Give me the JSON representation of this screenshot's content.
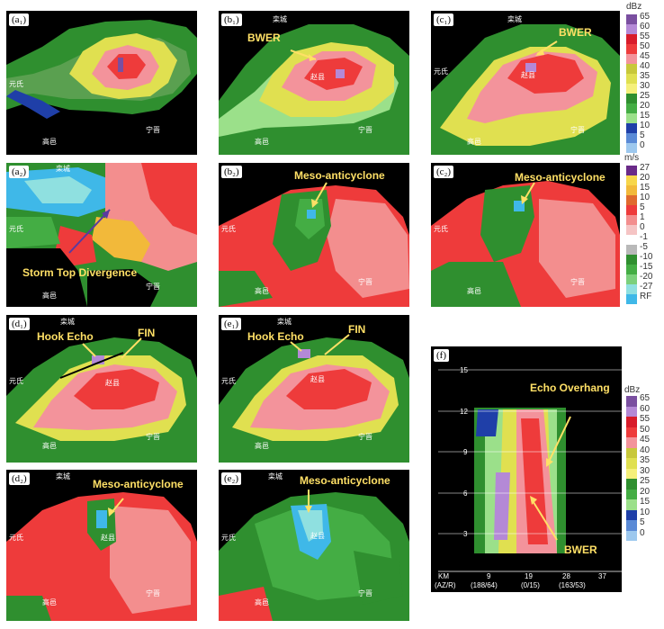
{
  "panels": [
    {
      "id": "a1",
      "label": "(a₁)",
      "cities": [
        "元氏",
        "高邑",
        "宁晋"
      ]
    },
    {
      "id": "b1",
      "label": "(b₁)",
      "cities": [
        "栾城",
        "赵县",
        "高邑",
        "宁晋"
      ],
      "annotation": "BWER"
    },
    {
      "id": "c1",
      "label": "(c₁)",
      "cities": [
        "栾城",
        "元氏",
        "赵县",
        "高邑",
        "宁晋"
      ],
      "annotation": "BWER"
    },
    {
      "id": "a2",
      "label": "(a₂)",
      "cities": [
        "栾城",
        "元氏",
        "高邑",
        "宁晋"
      ],
      "annotation": "Storm Top Divergence"
    },
    {
      "id": "b2",
      "label": "(b₂)",
      "cities": [
        "元氏",
        "高邑",
        "宁晋"
      ],
      "annotation": "Meso-anticyclone"
    },
    {
      "id": "c2",
      "label": "(c₂)",
      "cities": [
        "元氏",
        "高邑",
        "宁晋"
      ],
      "annotation": "Meso-anticyclone"
    },
    {
      "id": "d1",
      "label": "(d₁)",
      "cities": [
        "栾城",
        "元氏",
        "赵县",
        "高邑",
        "宁晋"
      ],
      "annotation": "Hook Echo",
      "annotation2": "FIN"
    },
    {
      "id": "e1",
      "label": "(e₁)",
      "cities": [
        "栾城",
        "元氏",
        "赵县",
        "高邑",
        "宁晋"
      ],
      "annotation": "Hook Echo",
      "annotation2": "FIN"
    },
    {
      "id": "d2",
      "label": "(d₂)",
      "cities": [
        "栾城",
        "元氏",
        "赵县",
        "高邑",
        "宁晋"
      ],
      "annotation": "Meso-anticyclone"
    },
    {
      "id": "e2",
      "label": "(e₂)",
      "cities": [
        "栾城",
        "元氏",
        "赵县",
        "高邑",
        "宁晋"
      ],
      "annotation": "Meso-anticyclone"
    },
    {
      "id": "f",
      "label": "(f)",
      "annotation": "Echo Overhang",
      "annotation2": "BWER"
    }
  ],
  "section_axes": {
    "y_ticks": [
      "15",
      "12",
      "9",
      "6",
      "3"
    ],
    "x_ticks": [
      "KM",
      "9",
      "19",
      "28",
      "37"
    ],
    "x_sub": [
      "(AZ/R)",
      "(188/64)",
      "(0/15)",
      "(163/53)"
    ]
  },
  "legend_dbz": {
    "unit": "dBz",
    "ticks": [
      "65",
      "60",
      "55",
      "50",
      "45",
      "40",
      "35",
      "30",
      "25",
      "20",
      "15",
      "10",
      "5",
      "0"
    ],
    "colors": [
      "#7a4fa0",
      "#b489d6",
      "#d81c2a",
      "#ee3b3b",
      "#f3939b",
      "#c8c83a",
      "#e0e050",
      "#f5f07a",
      "#2f8f2f",
      "#44ad44",
      "#9be08a",
      "#1f3fa8",
      "#5a8ad6",
      "#9dc8ee"
    ]
  },
  "legend_vel": {
    "unit": "m/s",
    "ticks": [
      "27",
      "20",
      "15",
      "10",
      "5",
      "1",
      "0",
      "-1",
      "-5",
      "-10",
      "-15",
      "-20",
      "-27",
      "RF"
    ],
    "colors": [
      "#6a2a88",
      "#f7d64a",
      "#f2b93a",
      "#e06a2e",
      "#ee3b3b",
      "#f38e8e",
      "#f5c4c4",
      "#ffffff",
      "#b9b9b9",
      "#2f8f2f",
      "#44ad44",
      "#7cd07c",
      "#8fe0e0",
      "#3fb8e8"
    ]
  },
  "legend_dbz_small": {
    "unit": "dBz",
    "ticks": [
      "65",
      "60",
      "55",
      "50",
      "45",
      "40",
      "35",
      "30",
      "25",
      "20",
      "15",
      "10",
      "5",
      "0"
    ]
  }
}
